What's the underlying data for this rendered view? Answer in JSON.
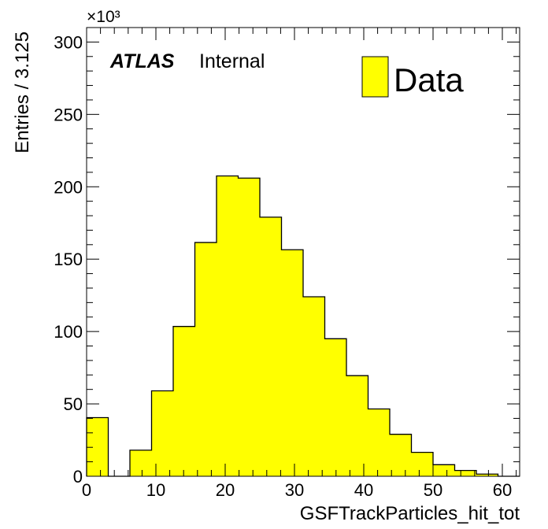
{
  "chart_data": {
    "type": "bar",
    "style": "histogram",
    "title": "",
    "xlabel": "GSFTrackParticles_hit_tot",
    "ylabel": "Entries / 3.125",
    "y_multiplier": "×10³",
    "xlim": [
      0,
      62.5
    ],
    "ylim": [
      0,
      310
    ],
    "bin_width": 3.125,
    "x_ticks": [
      "0",
      "10",
      "20",
      "30",
      "40",
      "50",
      "60"
    ],
    "y_ticks": [
      "0",
      "50",
      "100",
      "150",
      "200",
      "250",
      "300"
    ],
    "bin_low_edges": [
      0,
      3.125,
      6.25,
      9.375,
      12.5,
      15.625,
      18.75,
      21.875,
      25,
      28.125,
      31.25,
      34.375,
      37.5,
      40.625,
      43.75,
      46.875,
      50,
      53.125,
      56.25,
      59.375
    ],
    "series": [
      {
        "name": "Data",
        "values": [
          40.5,
          0,
          18,
          59,
          103.5,
          161.5,
          207.5,
          206,
          179,
          156.5,
          124,
          95,
          69.5,
          46.5,
          29,
          16.5,
          8,
          4,
          1.5,
          0
        ]
      }
    ],
    "fill_color": "#ffff00",
    "edge_color": "#000000",
    "grid": false,
    "legend_position": "top-right",
    "annotations": {
      "experiment": "ATLAS",
      "status": "Internal"
    }
  }
}
